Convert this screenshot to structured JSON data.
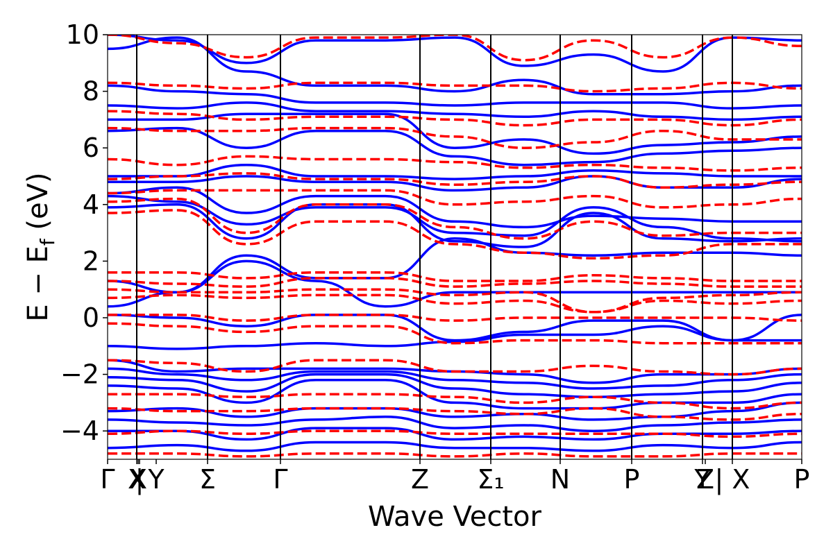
{
  "chart_data": {
    "type": "line",
    "title": "",
    "xlabel": "Wave Vector",
    "ylabel_main": "E − E",
    "ylabel_sub": "f",
    "ylabel_unit": " (eV)",
    "ylim": [
      -5,
      10
    ],
    "yticks": [
      -4,
      -2,
      0,
      2,
      4,
      6,
      8,
      10
    ],
    "ytick_labels": [
      "−4",
      "−2",
      "0",
      "2",
      "4",
      "6",
      "8",
      "10"
    ],
    "xlim": [
      0,
      10
    ],
    "kpoints": [
      {
        "pos": 0.0,
        "label": "Γ"
      },
      {
        "pos": 0.42,
        "label": "X"
      },
      {
        "pos": 0.44,
        "label": "X"
      },
      {
        "pos": 0.46,
        "label": "|"
      },
      {
        "pos": 0.7,
        "label": "Y"
      },
      {
        "pos": 1.44,
        "label": "Σ"
      },
      {
        "pos": 2.49,
        "label": "Γ"
      },
      {
        "pos": 4.5,
        "label": "Z"
      },
      {
        "pos": 5.52,
        "label": "Σ₁"
      },
      {
        "pos": 6.52,
        "label": "N"
      },
      {
        "pos": 7.55,
        "label": "P"
      },
      {
        "pos": 8.57,
        "label": "Y"
      },
      {
        "pos": 8.61,
        "label": "Z"
      },
      {
        "pos": 9.0,
        "label": "| X"
      },
      {
        "pos": 10.0,
        "label": "P"
      }
    ],
    "vlines": [
      0.42,
      1.44,
      2.49,
      4.5,
      5.52,
      6.52,
      7.55,
      8.57,
      9.0
    ],
    "grid": false,
    "series": [
      {
        "style": "solid",
        "color": "#0000ff",
        "bands": [
          [
            0.4,
            0.9,
            2.0,
            1.3,
            0.4,
            0.9,
            0.9,
            0.9,
            0.9,
            0.9,
            0.9
          ],
          [
            0.1,
            0.0,
            -0.3,
            0.1,
            0.1,
            -0.8,
            -0.5,
            -0.1,
            -0.1,
            -0.8,
            0.1
          ],
          [
            -1.0,
            -1.1,
            -1.0,
            -0.9,
            -1.0,
            -0.85,
            -0.6,
            -0.6,
            -0.3,
            -0.8,
            -0.8
          ],
          [
            -1.5,
            -1.9,
            -1.8,
            -1.8,
            -1.8,
            -1.9,
            -2.0,
            -2.3,
            -2.0,
            -2.0,
            -1.8
          ],
          [
            -1.8,
            -2.0,
            -2.2,
            -1.9,
            -1.9,
            -2.2,
            -2.3,
            -2.5,
            -2.4,
            -2.2,
            -2.0
          ],
          [
            -2.1,
            -2.2,
            -2.6,
            -2.0,
            -2.0,
            -2.5,
            -2.7,
            -2.8,
            -2.7,
            -2.6,
            -2.3
          ],
          [
            -2.4,
            -2.5,
            -3.0,
            -2.2,
            -2.2,
            -3.0,
            -3.2,
            -3.2,
            -3.0,
            -3.0,
            -2.7
          ],
          [
            -3.3,
            -3.2,
            -3.5,
            -3.2,
            -3.2,
            -3.5,
            -3.4,
            -3.6,
            -3.5,
            -3.3,
            -3.0
          ],
          [
            -3.6,
            -3.7,
            -3.8,
            -3.6,
            -3.5,
            -3.9,
            -3.8,
            -4.0,
            -3.8,
            -3.7,
            -3.6
          ],
          [
            -4.0,
            -4.0,
            -4.3,
            -3.9,
            -3.9,
            -4.3,
            -4.2,
            -4.3,
            -4.1,
            -4.1,
            -4.0
          ],
          [
            -4.6,
            -4.5,
            -4.7,
            -4.4,
            -4.4,
            -4.6,
            -4.6,
            -4.7,
            -4.5,
            -4.6,
            -4.4
          ],
          [
            1.3,
            0.9,
            2.2,
            1.4,
            1.4,
            2.8,
            2.3,
            2.2,
            2.3,
            2.3,
            2.2
          ],
          [
            3.9,
            4.0,
            2.8,
            4.0,
            4.0,
            2.7,
            2.5,
            3.7,
            2.8,
            2.7,
            2.8
          ],
          [
            4.3,
            4.1,
            3.3,
            3.9,
            3.9,
            3.0,
            2.9,
            3.9,
            3.2,
            2.8,
            2.7
          ],
          [
            4.4,
            4.6,
            3.7,
            4.3,
            4.3,
            3.4,
            3.2,
            3.6,
            3.5,
            3.4,
            3.4
          ],
          [
            4.8,
            4.8,
            5.0,
            4.8,
            4.8,
            4.5,
            4.6,
            5.0,
            4.6,
            4.6,
            4.9
          ],
          [
            5.0,
            5.0,
            5.4,
            5.0,
            5.0,
            4.9,
            5.0,
            5.2,
            5.1,
            5.0,
            5.0
          ],
          [
            6.6,
            6.7,
            6.0,
            6.6,
            6.6,
            5.7,
            5.4,
            5.5,
            5.8,
            5.9,
            6.0
          ],
          [
            7.0,
            7.0,
            7.2,
            7.2,
            7.2,
            6.0,
            6.3,
            5.8,
            6.1,
            6.2,
            6.4
          ],
          [
            7.5,
            7.4,
            7.6,
            7.3,
            7.3,
            7.2,
            7.1,
            7.3,
            7.1,
            7.0,
            7.1
          ],
          [
            8.2,
            8.0,
            7.9,
            7.6,
            7.6,
            7.5,
            7.6,
            7.6,
            7.6,
            7.4,
            7.5
          ],
          [
            9.5,
            9.9,
            8.7,
            8.2,
            8.2,
            8.0,
            8.4,
            7.9,
            7.9,
            8.0,
            8.2
          ],
          [
            10.0,
            9.8,
            9.0,
            9.8,
            9.8,
            9.9,
            8.9,
            9.3,
            8.7,
            9.9,
            9.8
          ]
        ]
      },
      {
        "style": "dashed",
        "color": "#ff0000",
        "bands": [
          [
            1.6,
            1.6,
            1.4,
            1.6,
            1.6,
            1.3,
            1.3,
            1.5,
            1.4,
            1.3,
            1.3
          ],
          [
            1.3,
            1.2,
            1.1,
            1.4,
            1.4,
            1.1,
            1.2,
            1.3,
            1.2,
            1.1,
            1.1
          ],
          [
            1.0,
            0.9,
            0.9,
            1.0,
            1.0,
            0.8,
            0.9,
            0.2,
            0.7,
            0.8,
            0.9
          ],
          [
            0.7,
            0.8,
            0.7,
            0.8,
            0.8,
            0.5,
            0.6,
            0.2,
            0.6,
            0.5,
            0.6
          ],
          [
            0.1,
            0.1,
            -0.1,
            0.1,
            0.1,
            -0.1,
            0.0,
            0.0,
            0.0,
            0.0,
            -0.1
          ],
          [
            -0.2,
            -0.3,
            -0.5,
            -0.3,
            -0.3,
            -0.9,
            -0.8,
            -0.8,
            -0.9,
            -0.9,
            -0.9
          ],
          [
            -1.5,
            -1.6,
            -1.9,
            -1.5,
            -1.5,
            -1.9,
            -1.9,
            -1.7,
            -1.9,
            -2.0,
            -1.8
          ],
          [
            -2.7,
            -2.7,
            -2.8,
            -2.7,
            -2.7,
            -2.8,
            -3.0,
            -2.8,
            -3.0,
            -3.2,
            -3.0
          ],
          [
            -3.2,
            -3.3,
            -3.3,
            -3.2,
            -3.2,
            -3.3,
            -3.4,
            -3.2,
            -3.5,
            -3.6,
            -3.4
          ],
          [
            -4.1,
            -4.0,
            -4.1,
            -4.0,
            -4.0,
            -4.1,
            -4.1,
            -4.1,
            -4.1,
            -4.2,
            -4.1
          ],
          [
            -4.8,
            -4.8,
            -4.9,
            -4.8,
            -4.8,
            -4.9,
            -4.8,
            -4.9,
            -4.9,
            -4.8,
            -4.8
          ],
          [
            3.7,
            3.8,
            2.6,
            3.4,
            3.4,
            2.6,
            2.3,
            2.1,
            2.2,
            2.6,
            2.6
          ],
          [
            4.1,
            4.2,
            3.0,
            4.0,
            4.0,
            3.2,
            2.8,
            3.4,
            2.9,
            3.0,
            3.0
          ],
          [
            4.4,
            4.5,
            4.5,
            4.5,
            4.5,
            4.0,
            4.1,
            4.3,
            3.9,
            4.0,
            4.2
          ],
          [
            4.9,
            5.0,
            5.1,
            4.9,
            4.9,
            4.7,
            4.8,
            5.0,
            4.6,
            4.7,
            4.8
          ],
          [
            5.6,
            5.4,
            5.7,
            5.6,
            5.6,
            5.5,
            5.3,
            5.4,
            5.3,
            5.2,
            5.3
          ],
          [
            6.7,
            6.6,
            6.6,
            6.7,
            6.7,
            6.4,
            6.0,
            6.2,
            6.6,
            6.3,
            6.3
          ],
          [
            7.3,
            7.2,
            7.0,
            7.1,
            7.1,
            7.0,
            6.8,
            7.0,
            7.0,
            6.8,
            7.0
          ],
          [
            8.3,
            8.2,
            8.1,
            8.3,
            8.3,
            8.2,
            8.2,
            8.0,
            8.1,
            8.3,
            8.1
          ],
          [
            10.0,
            9.7,
            9.2,
            9.9,
            9.9,
            10.0,
            9.1,
            9.8,
            9.2,
            9.9,
            9.6
          ]
        ]
      }
    ]
  }
}
